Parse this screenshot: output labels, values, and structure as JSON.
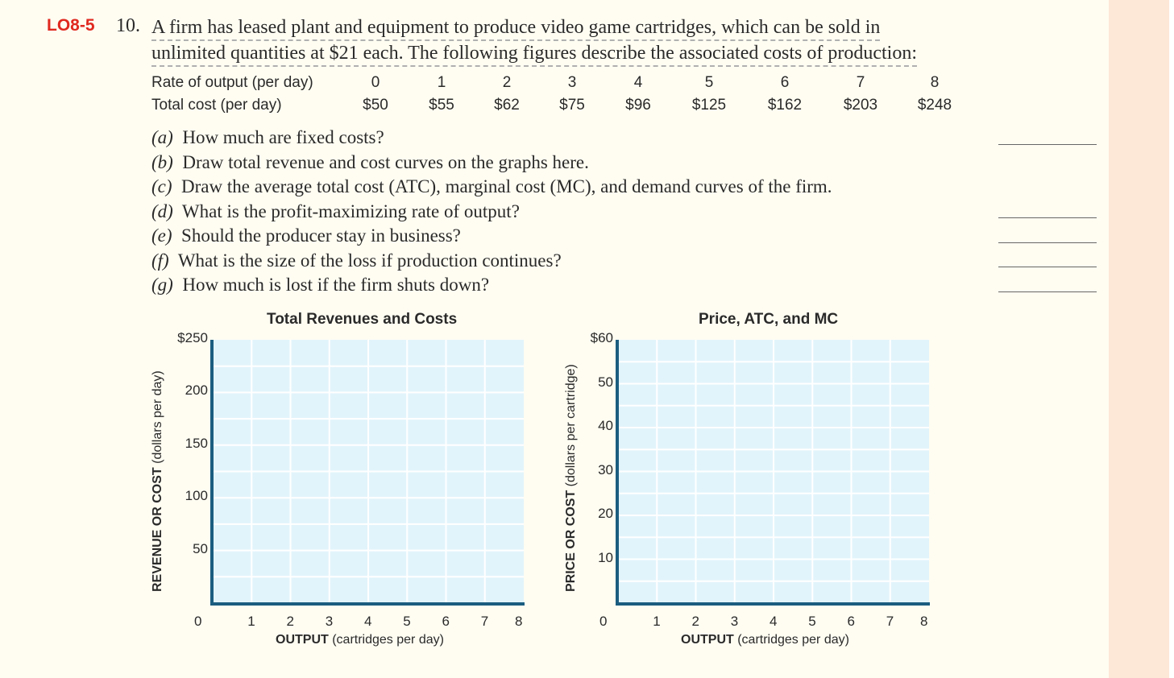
{
  "problem": {
    "tag": "LO8-5",
    "number": "10.",
    "intro_line1": "A firm has leased plant and equipment to produce video game cartridges, which can be sold in",
    "intro_line2": "unlimited quantities at $21 each. The following figures describe the associated costs of production:"
  },
  "table": {
    "row1_label": "Rate of output (per day)",
    "row2_label": "Total cost (per day)",
    "outputs": [
      "0",
      "1",
      "2",
      "3",
      "4",
      "5",
      "6",
      "7",
      "8"
    ],
    "costs": [
      "$50",
      "$55",
      "$62",
      "$75",
      "$96",
      "$125",
      "$162",
      "$203",
      "$248"
    ]
  },
  "questions": [
    {
      "letter": "(a)",
      "text": "How much are fixed costs?"
    },
    {
      "letter": "(b)",
      "text": "Draw total revenue and cost curves on the graphs here."
    },
    {
      "letter": "(c)",
      "text": "Draw the average total cost (ATC), marginal cost (MC), and demand curves of the firm."
    },
    {
      "letter": "(d)",
      "text": "What is the profit-maximizing rate of output?"
    },
    {
      "letter": "(e)",
      "text": "Should the producer stay in business?"
    },
    {
      "letter": "(f)",
      "text": "What is the size of the loss if production continues?"
    },
    {
      "letter": "(g)",
      "text": "How much is lost if the firm shuts down?"
    }
  ],
  "chart_data": [
    {
      "type": "line",
      "title": "Total Revenues and Costs",
      "ylabel_bold": "REVENUE OR COST",
      "ylabel_rest": "(dollars per day)",
      "xlabel_bold": "OUTPUT",
      "xlabel_rest": "(cartridges per day)",
      "y_ticks": [
        "$250",
        "200",
        "150",
        "100",
        "50"
      ],
      "x_ticks": [
        "0",
        "1",
        "2",
        "3",
        "4",
        "5",
        "6",
        "7",
        "8"
      ],
      "ylim": [
        0,
        250
      ],
      "xlim": [
        0,
        8
      ],
      "grid": true,
      "series": []
    },
    {
      "type": "line",
      "title": "Price, ATC, and MC",
      "ylabel_bold": "PRICE OR COST",
      "ylabel_rest": "(dollars per cartridge)",
      "xlabel_bold": "OUTPUT",
      "xlabel_rest": "(cartridges per day)",
      "y_ticks": [
        "$60",
        "50",
        "40",
        "30",
        "20",
        "10"
      ],
      "x_ticks": [
        "0",
        "1",
        "2",
        "3",
        "4",
        "5",
        "6",
        "7",
        "8"
      ],
      "ylim": [
        0,
        60
      ],
      "xlim": [
        0,
        8
      ],
      "grid": true,
      "series": []
    }
  ],
  "colors": {
    "tag": "#e0291f",
    "plot_bg": "#e2f4fb",
    "axis": "#1b5d80",
    "grid": "#ffffff",
    "side_strip": "#fde7d6"
  }
}
